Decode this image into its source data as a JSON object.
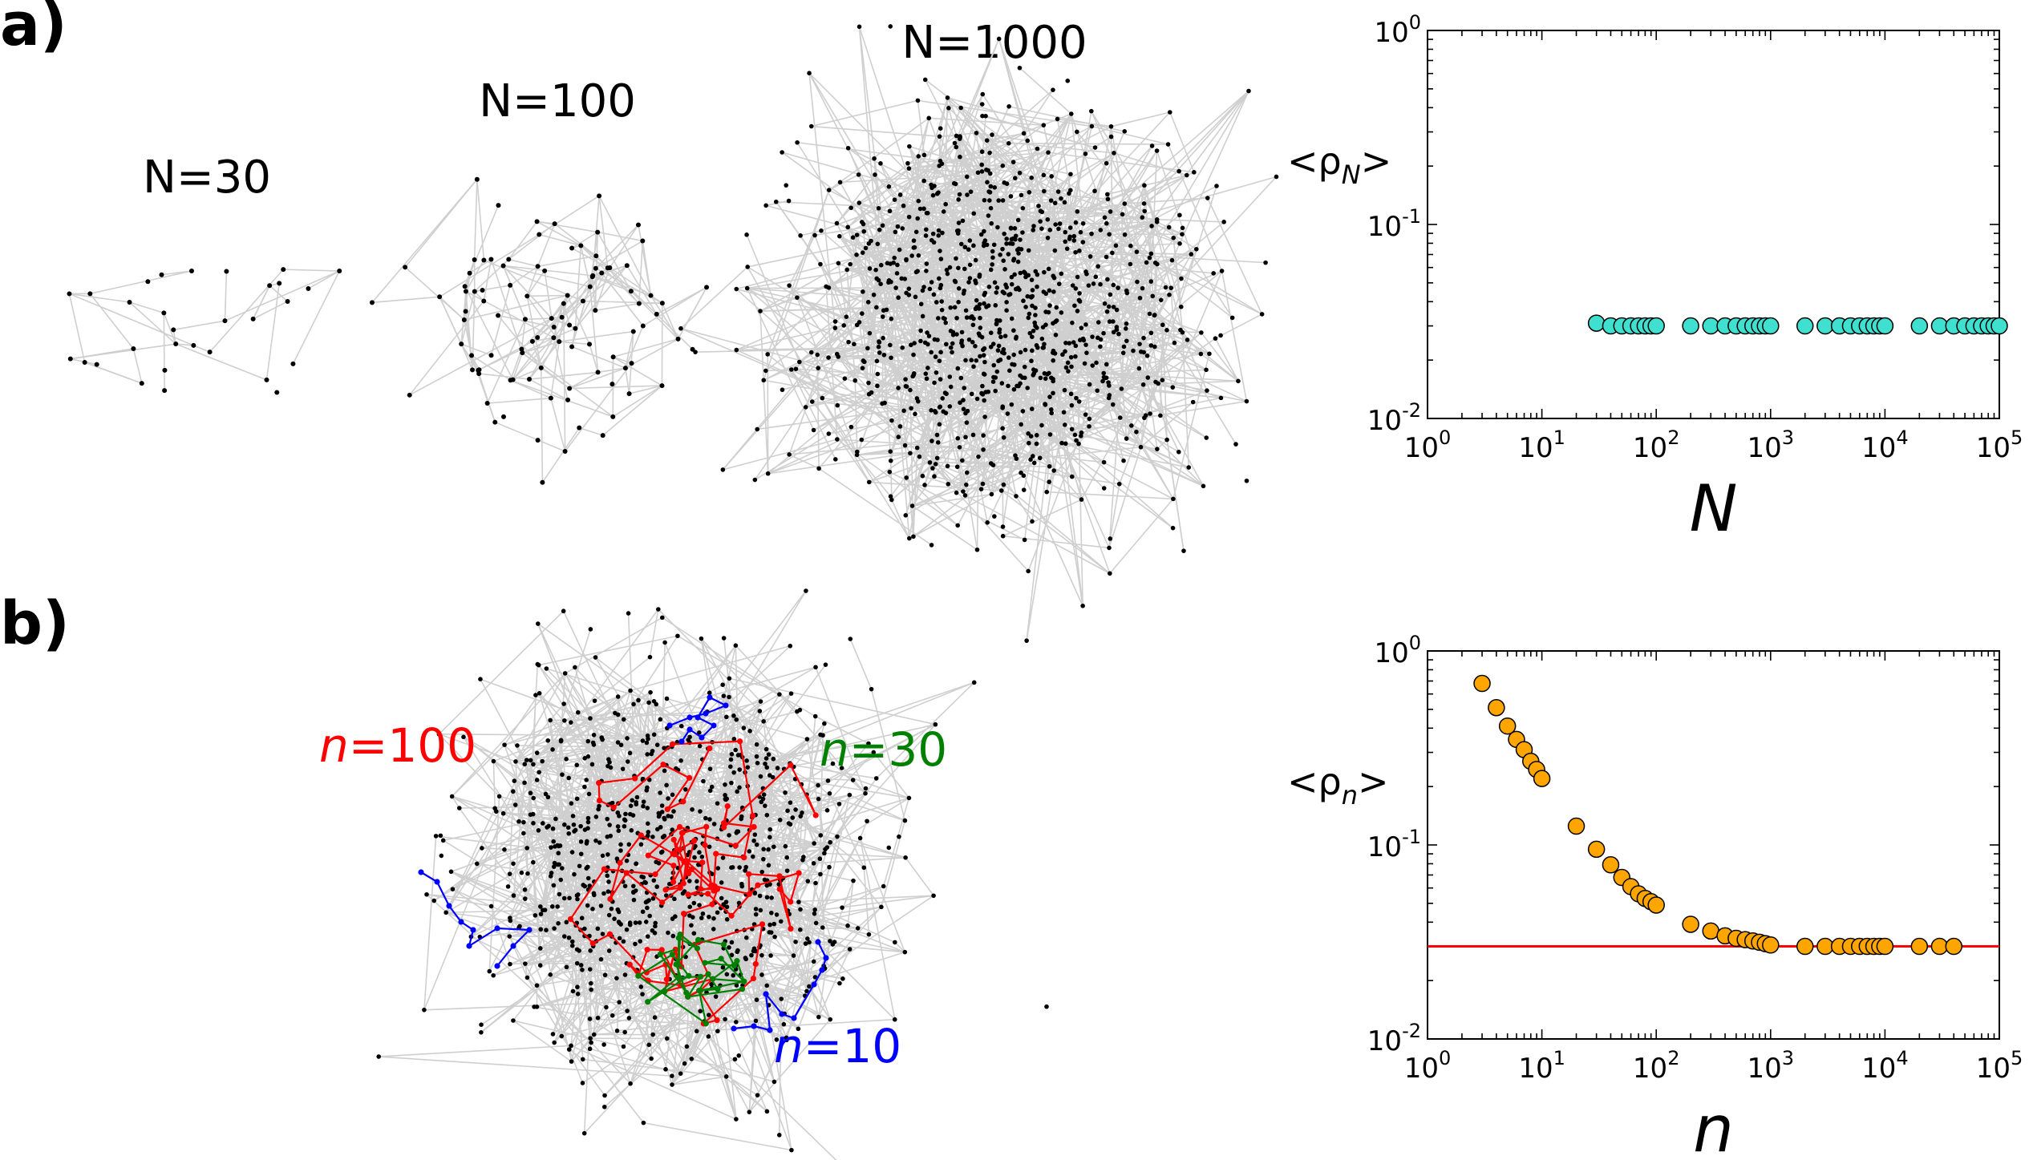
{
  "panel_labels": {
    "a": "a)",
    "b": "b)"
  },
  "networks": {
    "a": [
      {
        "label": "N=30",
        "nodes": 30
      },
      {
        "label": "N=100",
        "nodes": 100
      },
      {
        "label": "N=1000",
        "nodes": 1000
      }
    ],
    "b": {
      "nodes": 1000,
      "annotations": [
        {
          "prefix": "n",
          "value": "=100",
          "color": "#ff0000"
        },
        {
          "prefix": "n",
          "value": "=30",
          "color": "#008000"
        },
        {
          "prefix": "n",
          "value": "=10",
          "color": "#0000ff"
        }
      ]
    }
  },
  "chart_data": [
    {
      "type": "scatter",
      "panel": "a",
      "ylabel": {
        "main": "<ρ",
        "sub": "N",
        "close": ">"
      },
      "xlabel": "N",
      "x_scale": "log",
      "y_scale": "log",
      "xlim": [
        1,
        100000
      ],
      "ylim": [
        0.01,
        1
      ],
      "x_ticks": [
        {
          "base": "10",
          "exp": "0"
        },
        {
          "base": "10",
          "exp": "1"
        },
        {
          "base": "10",
          "exp": "2"
        },
        {
          "base": "10",
          "exp": "3"
        },
        {
          "base": "10",
          "exp": "4"
        },
        {
          "base": "10",
          "exp": "5"
        }
      ],
      "y_ticks": [
        {
          "base": "10",
          "exp": "-2"
        },
        {
          "base": "10",
          "exp": "-1"
        },
        {
          "base": "10",
          "exp": "0"
        }
      ],
      "marker_color": "#40e0d0",
      "x": [
        30,
        40,
        50,
        60,
        70,
        80,
        90,
        100,
        200,
        300,
        400,
        500,
        600,
        700,
        800,
        900,
        1000,
        2000,
        3000,
        4000,
        5000,
        6000,
        7000,
        8000,
        9000,
        10000,
        20000,
        30000,
        40000,
        50000,
        60000,
        70000,
        80000,
        90000,
        100000
      ],
      "y": [
        0.031,
        0.03,
        0.03,
        0.03,
        0.03,
        0.03,
        0.03,
        0.03,
        0.03,
        0.03,
        0.03,
        0.03,
        0.03,
        0.03,
        0.03,
        0.03,
        0.03,
        0.03,
        0.03,
        0.03,
        0.03,
        0.03,
        0.03,
        0.03,
        0.03,
        0.03,
        0.03,
        0.03,
        0.03,
        0.03,
        0.03,
        0.03,
        0.03,
        0.03,
        0.03
      ]
    },
    {
      "type": "scatter",
      "panel": "b",
      "ylabel": {
        "main": "<ρ",
        "sub": "n",
        "close": ">"
      },
      "xlabel": "n",
      "x_scale": "log",
      "y_scale": "log",
      "xlim": [
        1,
        100000
      ],
      "ylim": [
        0.01,
        1
      ],
      "x_ticks": [
        {
          "base": "10",
          "exp": "0"
        },
        {
          "base": "10",
          "exp": "1"
        },
        {
          "base": "10",
          "exp": "2"
        },
        {
          "base": "10",
          "exp": "3"
        },
        {
          "base": "10",
          "exp": "4"
        },
        {
          "base": "10",
          "exp": "5"
        }
      ],
      "y_ticks": [
        {
          "base": "10",
          "exp": "-2"
        },
        {
          "base": "10",
          "exp": "-1"
        },
        {
          "base": "10",
          "exp": "0"
        }
      ],
      "marker_color": "#ffa500",
      "reference_line": {
        "y": 0.03,
        "color": "#ff0000"
      },
      "x": [
        3,
        4,
        5,
        6,
        7,
        8,
        9,
        10,
        20,
        30,
        40,
        50,
        60,
        70,
        80,
        90,
        100,
        200,
        300,
        400,
        500,
        600,
        700,
        800,
        900,
        1000,
        2000,
        3000,
        4000,
        5000,
        6000,
        7000,
        8000,
        9000,
        10000,
        20000,
        30000,
        40000
      ],
      "y": [
        0.68,
        0.51,
        0.41,
        0.35,
        0.31,
        0.27,
        0.245,
        0.22,
        0.125,
        0.095,
        0.079,
        0.068,
        0.061,
        0.056,
        0.053,
        0.051,
        0.049,
        0.039,
        0.036,
        0.034,
        0.033,
        0.0325,
        0.032,
        0.0315,
        0.031,
        0.0305,
        0.03,
        0.03,
        0.03,
        0.03,
        0.03,
        0.03,
        0.03,
        0.03,
        0.03,
        0.03,
        0.03,
        0.03
      ]
    }
  ]
}
